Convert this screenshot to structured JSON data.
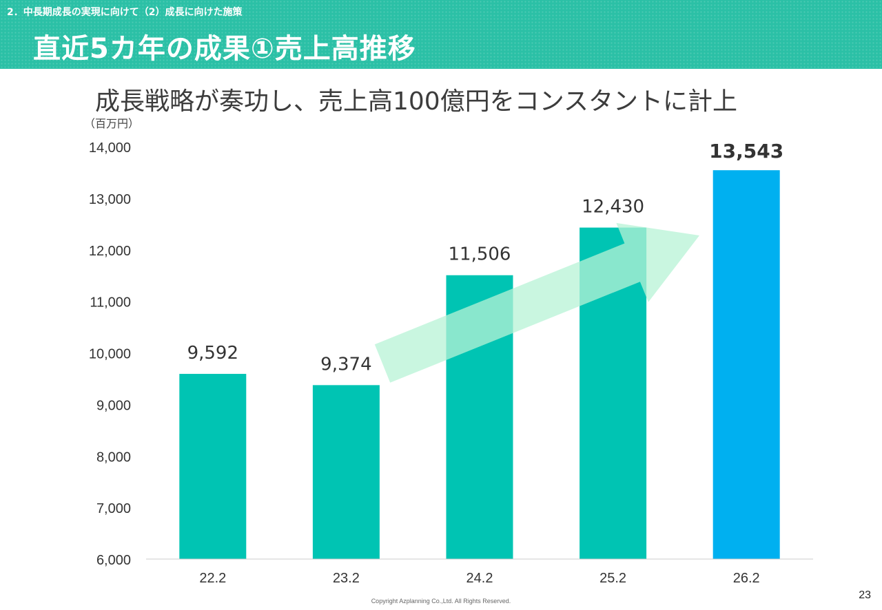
{
  "header": {
    "breadcrumb": "2．中長期成長の実現に向けて（2）成長に向けた施策",
    "title": "直近5カ年の成果①売上高推移"
  },
  "subtitle": "成長戦略が奏功し、売上高100億円をコンスタントに計上",
  "colors": {
    "header": "#2bc0a6",
    "bar": "#00c4b3",
    "highlight_bar": "#00b0f0",
    "arrow": "#b7f3d6"
  },
  "chart_data": {
    "type": "bar",
    "categories": [
      "22.2",
      "23.2",
      "24.2",
      "25.2",
      "26.2"
    ],
    "values": [
      9592,
      9374,
      11506,
      12430,
      13543
    ],
    "value_labels": [
      "9,592",
      "9,374",
      "11,506",
      "12,430",
      "13,543"
    ],
    "highlight_index": 4,
    "unit_label": "（百万円）",
    "ylim": [
      6000,
      14000
    ],
    "y_ticks": [
      6000,
      7000,
      8000,
      9000,
      10000,
      11000,
      12000,
      13000,
      14000
    ],
    "y_tick_labels": [
      "6,000",
      "7,000",
      "8,000",
      "9,000",
      "10,000",
      "11,000",
      "12,000",
      "13,000",
      "14,000"
    ],
    "grid": false,
    "legend": "none",
    "annotation": "upward trend arrow from 23.2 to 26.2"
  },
  "footer": {
    "copyright": "Copyright Azplanning Co.,Ltd. All Rights Reserved.",
    "page_number": "23"
  }
}
